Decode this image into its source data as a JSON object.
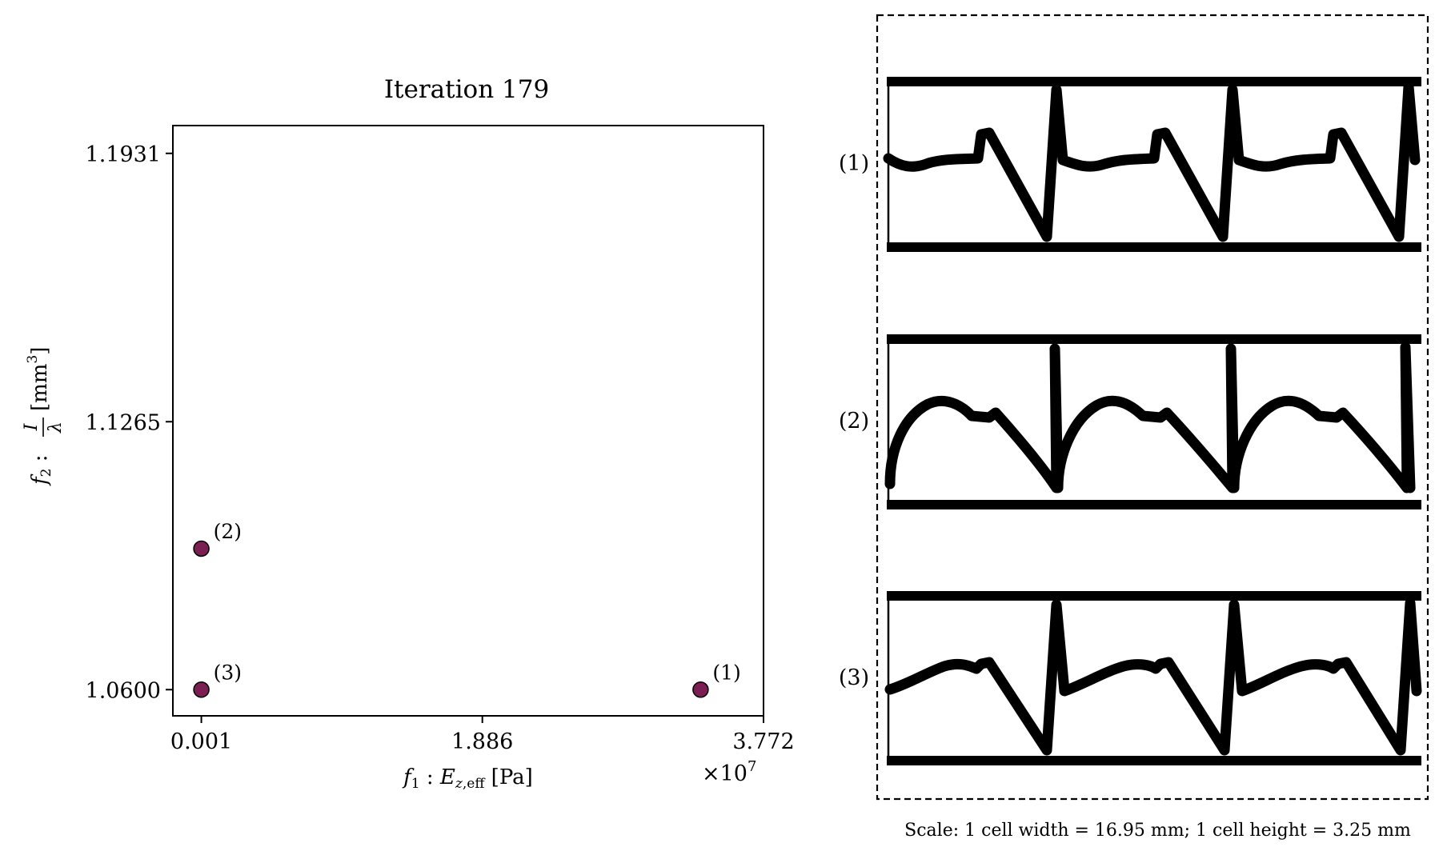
{
  "chart_data": {
    "type": "scatter",
    "title": "Iteration 179",
    "xlabel": "f₁ :  E_z,eff [Pa]",
    "ylabel": "f₂ : I/λ [mm³]",
    "x_offset_label": "×10⁷",
    "x_multiplier": 10000000,
    "xlim": [
      -0.19,
      3.772
    ],
    "ylim": [
      1.0535,
      1.2
    ],
    "x_ticks": [
      0.001,
      1.886,
      3.772
    ],
    "x_tick_labels": [
      "0.001",
      "1.886",
      "3.772"
    ],
    "y_ticks": [
      1.06,
      1.1265,
      1.1931
    ],
    "y_tick_labels": [
      "1.0600",
      "1.1265",
      "1.1931"
    ],
    "grid": false,
    "marker_color": "#7b1f52",
    "points": [
      {
        "label": "(1)",
        "x": 3.35,
        "y": 1.06
      },
      {
        "label": "(2)",
        "x": 0.001,
        "y": 1.095
      },
      {
        "label": "(3)",
        "x": 0.001,
        "y": 1.06
      }
    ]
  },
  "designs": {
    "labels": [
      "(1)",
      "(2)",
      "(3)"
    ],
    "shapes": [
      "wavy-cell-1",
      "arched-cell-2",
      "wavy-cell-3"
    ],
    "scale_text": "Scale: 1 cell width = 16.95 mm; 1 cell height = 3.25 mm"
  }
}
